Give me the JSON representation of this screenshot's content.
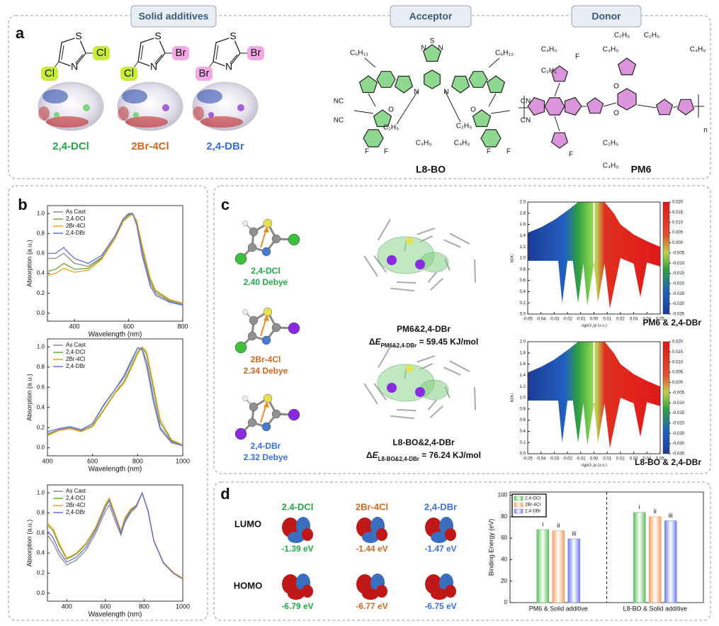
{
  "figure": {
    "panel_labels": [
      "a",
      "b",
      "c",
      "d"
    ],
    "headers": [
      "Solid additives",
      "Acceptor",
      "Donor"
    ],
    "additives": [
      {
        "name": "2,4-DCl",
        "color": "#22a845",
        "ring_atoms": [
          "S",
          "N"
        ],
        "substituents": [
          {
            "text": "Cl",
            "highlight": "#c9ec3a"
          },
          {
            "text": "Cl",
            "highlight": "#c9ec3a"
          }
        ]
      },
      {
        "name": "2Br-4Cl",
        "color": "#d2691e",
        "ring_atoms": [
          "S",
          "N"
        ],
        "substituents": [
          {
            "text": "Br",
            "highlight": "#f5a8e6"
          },
          {
            "text": "Cl",
            "highlight": "#c9ec3a"
          }
        ]
      },
      {
        "name": "2,4-DBr",
        "color": "#3a6fe0",
        "ring_atoms": [
          "S",
          "N"
        ],
        "substituents": [
          {
            "text": "Br",
            "highlight": "#f5a8e6"
          },
          {
            "text": "Br",
            "highlight": "#f5a8e6"
          }
        ]
      }
    ],
    "acceptor": {
      "name": "L8-BO",
      "labels": [
        "C₆H₁₃",
        "C₆H₁₃",
        "N",
        "S",
        "N",
        "N",
        "N",
        "NC",
        "NC",
        "CN",
        "CN",
        "O",
        "O",
        "C₂H₅",
        "C₄H₉",
        "C₂H₅",
        "C₄H₉",
        "F",
        "F",
        "F",
        "F"
      ]
    },
    "donor": {
      "name": "PM6",
      "labels": [
        "C₄H₉",
        "C₂H₅",
        "F",
        "C₂H₅",
        "C₂H₅",
        "C₄H₉",
        "C₄H₉",
        "O",
        "O",
        "F",
        "C₂H₅",
        "C₄H₉",
        "n"
      ]
    },
    "dipoles": [
      {
        "name": "2,4-DCl",
        "value": "2.40 Debye",
        "color": "#22a845"
      },
      {
        "name": "2Br-4Cl",
        "value": "2.34 Debye",
        "color": "#d2691e"
      },
      {
        "name": "2,4-DBr",
        "value": "2.32 Debye",
        "color": "#3a6fe0"
      }
    ],
    "complexes": [
      {
        "name": "PM6&2,4-DBr",
        "delta": "Δ",
        "symbol": "E",
        "subscript": "PM6&2,4-DBr",
        "value": " = 59.45 KJ/mol"
      },
      {
        "name": "L8-BO&2,4-DBr",
        "delta": "Δ",
        "symbol": "E",
        "subscript": "L8-BO&2,4-DBr",
        "value": " = 76.24 KJ/mol"
      }
    ],
    "orbitals": {
      "rows": [
        "LUMO",
        "HOMO"
      ],
      "columns": [
        {
          "name": "2.4-DCl",
          "color": "#22a845",
          "lumo": "-1.39 eV",
          "homo": "-6.79 eV"
        },
        {
          "name": "2Br-4Cl",
          "color": "#d2691e",
          "lumo": "-1.44 eV",
          "homo": "-6.77 eV"
        },
        {
          "name": "2,4-DBr",
          "color": "#3a6fe0",
          "lumo": "-1.47 eV",
          "homo": "-6.75 eV"
        }
      ]
    }
  },
  "chart_data": [
    {
      "type": "line",
      "xlabel": "Wavelength (nm)",
      "ylabel": "Absorption (a.u.)",
      "legend": "upper left",
      "x": [
        300,
        330,
        360,
        380,
        400,
        450,
        500,
        550,
        580,
        600,
        615,
        630,
        650,
        680,
        700,
        750,
        800
      ],
      "xlim": [
        300,
        800
      ],
      "xticks": [
        400,
        600,
        800
      ],
      "ylim": [
        -0.08,
        1.08
      ],
      "yticks": [
        {
          "value": 0,
          "label": "0.0"
        },
        0.2,
        0.4,
        0.6,
        0.8,
        {
          "value": 1,
          "label": "1.0"
        }
      ],
      "series": [
        {
          "name": "As Cast",
          "color": "#8a8a8a",
          "values": [
            0.55,
            0.55,
            0.6,
            0.55,
            0.5,
            0.47,
            0.56,
            0.76,
            0.93,
            0.99,
            1.0,
            0.9,
            0.62,
            0.3,
            0.2,
            0.12,
            0.09
          ]
        },
        {
          "name": "2,4-DCl",
          "color": "#6aaa2a",
          "values": [
            0.42,
            0.44,
            0.5,
            0.47,
            0.44,
            0.45,
            0.55,
            0.76,
            0.93,
            0.98,
            1.0,
            0.92,
            0.66,
            0.33,
            0.22,
            0.13,
            0.1
          ]
        },
        {
          "name": "2Br-4Cl",
          "color": "#f0a020",
          "values": [
            0.38,
            0.4,
            0.45,
            0.43,
            0.41,
            0.43,
            0.54,
            0.75,
            0.92,
            0.97,
            0.99,
            0.93,
            0.68,
            0.35,
            0.23,
            0.14,
            0.1
          ]
        },
        {
          "name": "2,4-DBr",
          "color": "#6070e0",
          "values": [
            0.6,
            0.6,
            0.66,
            0.6,
            0.55,
            0.5,
            0.58,
            0.78,
            0.95,
            1.0,
            1.0,
            0.88,
            0.58,
            0.27,
            0.18,
            0.11,
            0.08
          ]
        }
      ]
    },
    {
      "type": "line",
      "xlabel": "Wavelength (nm)",
      "ylabel": "Absorption (a.u.)",
      "legend": "upper left",
      "x": [
        400,
        450,
        500,
        550,
        600,
        650,
        700,
        740,
        770,
        800,
        820,
        840,
        870,
        900,
        950,
        1000
      ],
      "xlim": [
        400,
        1000
      ],
      "xticks": [
        400,
        600,
        800,
        1000
      ],
      "ylim": [
        -0.08,
        1.08
      ],
      "yticks": [
        {
          "value": 0,
          "label": "0.0"
        },
        0.2,
        0.4,
        0.6,
        0.8,
        {
          "value": 1,
          "label": "1.0"
        }
      ],
      "series": [
        {
          "name": "As Cast",
          "color": "#8a8a8a",
          "values": [
            0.14,
            0.18,
            0.2,
            0.17,
            0.24,
            0.42,
            0.58,
            0.72,
            0.86,
            0.99,
            0.97,
            0.8,
            0.45,
            0.18,
            0.05,
            0.02
          ]
        },
        {
          "name": "2,4-DCl",
          "color": "#6aaa2a",
          "values": [
            0.13,
            0.17,
            0.19,
            0.16,
            0.22,
            0.38,
            0.55,
            0.66,
            0.8,
            0.95,
            1.0,
            0.92,
            0.58,
            0.25,
            0.07,
            0.03
          ]
        },
        {
          "name": "2Br-4Cl",
          "color": "#f0a020",
          "values": [
            0.12,
            0.17,
            0.19,
            0.16,
            0.21,
            0.37,
            0.54,
            0.64,
            0.78,
            0.93,
            1.0,
            0.95,
            0.62,
            0.28,
            0.08,
            0.03
          ]
        },
        {
          "name": "2,4-DBr",
          "color": "#6070e0",
          "values": [
            0.16,
            0.19,
            0.21,
            0.18,
            0.24,
            0.43,
            0.58,
            0.7,
            0.84,
            0.99,
            0.98,
            0.85,
            0.5,
            0.2,
            0.06,
            0.02
          ]
        }
      ]
    },
    {
      "type": "line",
      "xlabel": "Wavelength (nm)",
      "ylabel": "Absorption (a.u.)",
      "legend": "upper left",
      "x": [
        300,
        330,
        360,
        400,
        450,
        500,
        550,
        600,
        620,
        650,
        680,
        700,
        730,
        760,
        790,
        820,
        850,
        900,
        950,
        1000
      ],
      "xlim": [
        300,
        1000
      ],
      "xticks": [
        400,
        600,
        800,
        1000
      ],
      "ylim": [
        -0.08,
        1.08
      ],
      "yticks": [
        {
          "value": 0,
          "label": "0.0"
        },
        0.2,
        0.4,
        0.6,
        0.8,
        {
          "value": 1,
          "label": "1.0"
        }
      ],
      "series": [
        {
          "name": "As Cast",
          "color": "#8a8a8a",
          "values": [
            0.58,
            0.5,
            0.38,
            0.28,
            0.33,
            0.43,
            0.6,
            0.82,
            0.88,
            0.72,
            0.58,
            0.7,
            0.8,
            0.86,
            1.0,
            0.82,
            0.52,
            0.3,
            0.2,
            0.14
          ]
        },
        {
          "name": "2,4-DCl",
          "color": "#6aaa2a",
          "values": [
            0.68,
            0.62,
            0.48,
            0.34,
            0.39,
            0.49,
            0.65,
            0.88,
            0.94,
            0.78,
            0.62,
            0.74,
            0.83,
            0.88,
            1.0,
            0.83,
            0.53,
            0.31,
            0.2,
            0.15
          ]
        },
        {
          "name": "2Br-4Cl",
          "color": "#f0a020",
          "values": [
            0.7,
            0.64,
            0.5,
            0.35,
            0.4,
            0.5,
            0.66,
            0.89,
            0.95,
            0.79,
            0.62,
            0.75,
            0.84,
            0.88,
            1.0,
            0.83,
            0.53,
            0.31,
            0.21,
            0.15
          ]
        },
        {
          "name": "2,4-DBr",
          "color": "#6070e0",
          "values": [
            0.62,
            0.55,
            0.42,
            0.31,
            0.36,
            0.46,
            0.63,
            0.86,
            0.92,
            0.76,
            0.6,
            0.72,
            0.82,
            0.87,
            1.0,
            0.82,
            0.52,
            0.3,
            0.2,
            0.14
          ]
        }
      ]
    },
    {
      "type": "scatter",
      "title": "PM6 & 2,4-DBr",
      "xlabel": "sign(λ₂)ρ (a.u.)",
      "ylabel": "RDG",
      "xlim": [
        -0.05,
        0.05
      ],
      "xticks": [
        -0.05,
        -0.04,
        -0.03,
        -0.02,
        -0.01,
        {
          "value": 0,
          "label": "0.00"
        },
        0.01,
        0.02,
        0.03,
        0.04,
        0.05
      ],
      "ylim": [
        0,
        2
      ],
      "yticks": [
        {
          "value": 0,
          "label": "0.0"
        },
        0.2,
        0.4,
        0.6,
        0.8,
        {
          "value": 1,
          "label": "1.0"
        },
        1.2,
        1.4,
        1.6,
        1.8,
        {
          "value": 2,
          "label": "2.0"
        }
      ],
      "clim": [
        -0.035,
        0.02
      ],
      "cticks": [
        {
          "value": 0.02,
          "label": "0.020"
        },
        0.015,
        {
          "value": 0.01,
          "label": "0.010"
        },
        0.005,
        {
          "value": 0,
          "label": "0.000"
        },
        -0.005,
        {
          "value": -0.01,
          "label": "-0.010"
        },
        -0.015,
        {
          "value": -0.02,
          "label": "-0.020"
        },
        -0.025,
        {
          "value": -0.03,
          "label": "-0.030"
        },
        -0.035
      ]
    },
    {
      "type": "scatter",
      "title": "L8-BO & 2,4-DBr",
      "xlabel": "sign(λ₂)ρ (a.u.)",
      "ylabel": "RDG",
      "xlim": [
        -0.05,
        0.05
      ],
      "xticks": [
        -0.05,
        -0.04,
        -0.03,
        -0.02,
        -0.01,
        {
          "value": 0,
          "label": "0.00"
        },
        0.01,
        0.02,
        0.03,
        0.04,
        0.05
      ],
      "ylim": [
        0,
        2
      ],
      "yticks": [
        {
          "value": 0,
          "label": "0.0"
        },
        0.2,
        0.4,
        0.6,
        0.8,
        {
          "value": 1,
          "label": "1.0"
        },
        1.2,
        1.4,
        1.6,
        1.8,
        {
          "value": 2,
          "label": "2.0"
        }
      ],
      "clim": [
        -0.035,
        0.02
      ],
      "cticks": [
        {
          "value": 0.02,
          "label": "0.020"
        },
        0.015,
        {
          "value": 0.01,
          "label": "0.010"
        },
        0.005,
        {
          "value": 0,
          "label": "0.000"
        },
        -0.005,
        {
          "value": -0.01,
          "label": "-0.010"
        },
        -0.015,
        {
          "value": -0.02,
          "label": "-0.020"
        },
        -0.025,
        {
          "value": -0.03,
          "label": "-0.030"
        },
        -0.035
      ]
    },
    {
      "type": "bar",
      "ylabel": "Binding Energy (eV)",
      "legend": "upper left",
      "categories": [
        "PM6 & Solid additive",
        "L8-BO & Solid additive"
      ],
      "series": [
        {
          "name": "2,4-DCl",
          "color": "#5cc05c",
          "values": [
            68,
            84
          ]
        },
        {
          "name": "2Br-4Cl",
          "color": "#f4a060",
          "values": [
            67,
            80
          ]
        },
        {
          "name": "2,4-DBr",
          "color": "#6f7ff5",
          "values": [
            59.45,
            76.24
          ]
        }
      ],
      "annotations": [
        "i",
        "ii",
        "iii"
      ],
      "ylim": [
        0,
        103
      ],
      "yticks": [
        0,
        20,
        40,
        60,
        80,
        100
      ]
    }
  ]
}
